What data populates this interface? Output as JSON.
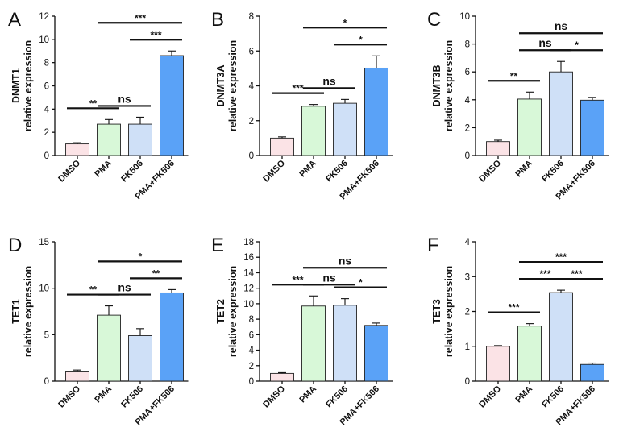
{
  "chart_data": [
    {
      "panel": "A",
      "type": "bar",
      "categories": [
        "DMSO",
        "PMA",
        "FK506",
        "PMA+FK506"
      ],
      "values": [
        1.0,
        2.7,
        2.7,
        8.6
      ],
      "errors": [
        0.1,
        0.4,
        0.6,
        0.4
      ],
      "ylabel_lines": [
        "DNMT1",
        "relative expression"
      ],
      "ylim": [
        0,
        12
      ],
      "yticks": [
        0,
        2,
        4,
        6,
        8,
        10,
        12
      ],
      "significance": [
        {
          "from": 0,
          "to": 1,
          "label": "**"
        },
        {
          "from": 1,
          "to": 2,
          "label": "ns"
        },
        {
          "from": 2,
          "to": 3,
          "label": "***"
        },
        {
          "from": 1,
          "to": 3,
          "label": "***"
        }
      ]
    },
    {
      "panel": "B",
      "type": "bar",
      "categories": [
        "DMSO",
        "PMA",
        "FK506",
        "PMA+FK506"
      ],
      "values": [
        1.0,
        2.83,
        3.0,
        5.02
      ],
      "errors": [
        0.07,
        0.1,
        0.22,
        0.7
      ],
      "ylabel_lines": [
        "DNMT3A",
        "relative expression"
      ],
      "ylim": [
        0,
        8
      ],
      "yticks": [
        0,
        2,
        4,
        6,
        8
      ],
      "significance": [
        {
          "from": 0,
          "to": 1,
          "label": "***"
        },
        {
          "from": 1,
          "to": 2,
          "label": "ns"
        },
        {
          "from": 2,
          "to": 3,
          "label": "*"
        },
        {
          "from": 1,
          "to": 3,
          "label": "*"
        }
      ]
    },
    {
      "panel": "C",
      "type": "bar",
      "categories": [
        "DMSO",
        "PMA",
        "FK506",
        "PMA+FK506"
      ],
      "values": [
        1.0,
        4.05,
        6.0,
        3.97
      ],
      "errors": [
        0.1,
        0.5,
        0.75,
        0.2
      ],
      "ylabel_lines": [
        "DNMT3B",
        "relative expression"
      ],
      "ylim": [
        0,
        10
      ],
      "yticks": [
        0,
        2,
        4,
        6,
        8,
        10
      ],
      "significance": [
        {
          "from": 0,
          "to": 1,
          "label": "**"
        },
        {
          "from": 1,
          "to": 2,
          "label": "ns"
        },
        {
          "from": 2,
          "to": 3,
          "label": "*"
        },
        {
          "from": 1,
          "to": 3,
          "label": "ns"
        }
      ]
    },
    {
      "panel": "D",
      "type": "bar",
      "categories": [
        "DMSO",
        "PMA",
        "FK506",
        "PMA+FK506"
      ],
      "values": [
        1.0,
        7.1,
        4.9,
        9.5
      ],
      "errors": [
        0.2,
        1.0,
        0.75,
        0.35
      ],
      "ylabel_lines": [
        "TET1",
        "relative expression"
      ],
      "ylim": [
        0,
        15
      ],
      "yticks": [
        0,
        5,
        10,
        15
      ],
      "significance": [
        {
          "from": 0,
          "to": 1,
          "label": "**"
        },
        {
          "from": 1,
          "to": 2,
          "label": "ns"
        },
        {
          "from": 2,
          "to": 3,
          "label": "**"
        },
        {
          "from": 1,
          "to": 3,
          "label": "*"
        }
      ]
    },
    {
      "panel": "E",
      "type": "bar",
      "categories": [
        "DMSO",
        "PMA",
        "FK506",
        "PMA+FK506"
      ],
      "values": [
        1.0,
        9.7,
        9.8,
        7.2
      ],
      "errors": [
        0.1,
        1.3,
        0.85,
        0.3
      ],
      "ylabel_lines": [
        "TET2",
        "relative expression"
      ],
      "ylim": [
        0,
        18
      ],
      "yticks": [
        0,
        2,
        4,
        6,
        8,
        10,
        12,
        14,
        16,
        18
      ],
      "significance": [
        {
          "from": 0,
          "to": 1,
          "label": "***"
        },
        {
          "from": 1,
          "to": 2,
          "label": "ns"
        },
        {
          "from": 2,
          "to": 3,
          "label": "*"
        },
        {
          "from": 1,
          "to": 3,
          "label": "ns"
        }
      ]
    },
    {
      "panel": "F",
      "type": "bar",
      "categories": [
        "DMSO",
        "PMA",
        "FK506",
        "PMA+FK506"
      ],
      "values": [
        1.0,
        1.58,
        2.54,
        0.48
      ],
      "errors": [
        0.02,
        0.07,
        0.07,
        0.04
      ],
      "ylabel_lines": [
        "TET3",
        "relative expression"
      ],
      "ylim": [
        0,
        4
      ],
      "yticks": [
        0,
        1,
        2,
        3,
        4
      ],
      "significance": [
        {
          "from": 0,
          "to": 1,
          "label": "***"
        },
        {
          "from": 1,
          "to": 2,
          "label": "***"
        },
        {
          "from": 2,
          "to": 3,
          "label": "***"
        },
        {
          "from": 1,
          "to": 3,
          "label": "***"
        }
      ]
    }
  ],
  "colors": {
    "bar_fills": [
      "#fbe3e6",
      "#d8f8d8",
      "#cfe0f7",
      "#5aa2f7"
    ],
    "bar_strokes": [
      "#222222",
      "#222222",
      "#222222",
      "#222222"
    ],
    "axis": "#111111"
  }
}
